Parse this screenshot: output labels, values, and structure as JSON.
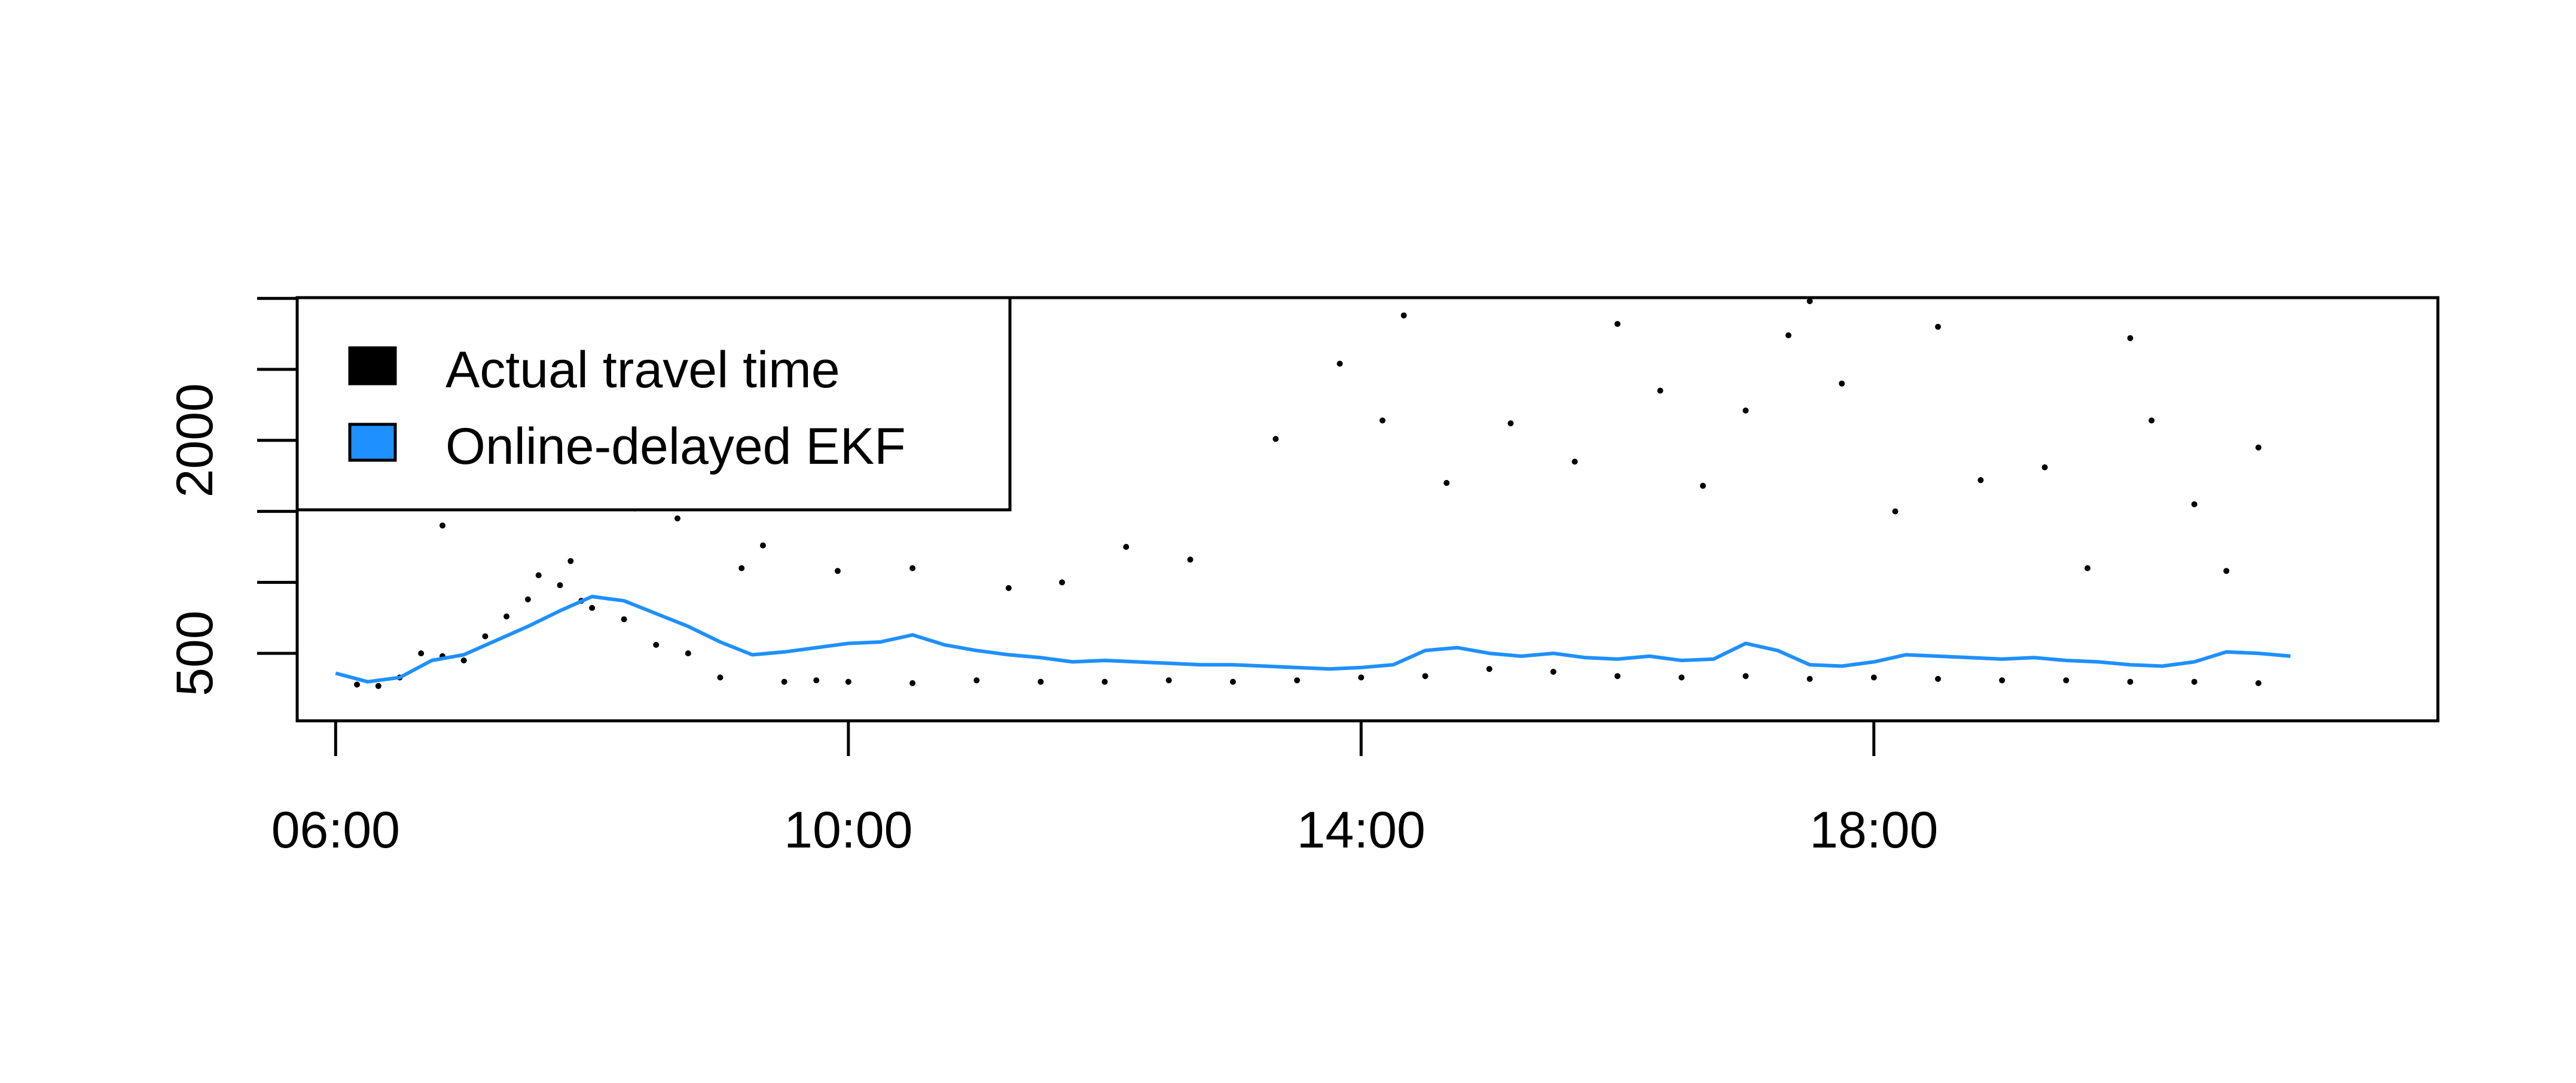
{
  "chart_data": {
    "type": "scatter",
    "title": "",
    "xlabel": "",
    "ylabel": "",
    "xlim": [
      "05:42",
      "22:24"
    ],
    "ylim": [
      25,
      3005
    ],
    "x_ticks": [
      "06:00",
      "10:00",
      "14:00",
      "18:00"
    ],
    "y_ticks": [
      500,
      1000,
      1500,
      2000,
      2500,
      3000
    ],
    "y_tick_labels": [
      "500",
      "",
      "",
      "2000",
      "",
      ""
    ],
    "legend": {
      "position": "top-left",
      "entries": [
        {
          "label": "Actual travel time",
          "color": "#000000"
        },
        {
          "label": "Online-delayed EKF",
          "color": "#1E90FF"
        }
      ]
    },
    "series": [
      {
        "name": "Actual travel time",
        "kind": "points",
        "color": "#000000",
        "points": [
          [
            "06:10",
            280
          ],
          [
            "06:20",
            270
          ],
          [
            "06:30",
            330
          ],
          [
            "06:40",
            500
          ],
          [
            "06:50",
            480
          ],
          [
            "07:00",
            450
          ],
          [
            "07:10",
            620
          ],
          [
            "07:20",
            760
          ],
          [
            "07:30",
            880
          ],
          [
            "07:35",
            1050
          ],
          [
            "07:45",
            980
          ],
          [
            "07:50",
            1150
          ],
          [
            "07:55",
            870
          ],
          [
            "08:00",
            820
          ],
          [
            "08:15",
            740
          ],
          [
            "08:30",
            560
          ],
          [
            "08:45",
            500
          ],
          [
            "09:00",
            330
          ],
          [
            "09:30",
            300
          ],
          [
            "09:45",
            310
          ],
          [
            "10:00",
            300
          ],
          [
            "10:30",
            290
          ],
          [
            "11:00",
            310
          ],
          [
            "11:30",
            300
          ],
          [
            "12:00",
            300
          ],
          [
            "12:30",
            310
          ],
          [
            "13:00",
            300
          ],
          [
            "13:30",
            310
          ],
          [
            "14:00",
            330
          ],
          [
            "14:30",
            340
          ],
          [
            "15:00",
            390
          ],
          [
            "15:30",
            370
          ],
          [
            "16:00",
            340
          ],
          [
            "16:30",
            330
          ],
          [
            "17:00",
            340
          ],
          [
            "17:30",
            320
          ],
          [
            "18:00",
            330
          ],
          [
            "18:30",
            320
          ],
          [
            "19:00",
            310
          ],
          [
            "19:30",
            310
          ],
          [
            "20:00",
            300
          ],
          [
            "20:30",
            300
          ],
          [
            "21:00",
            290
          ],
          [
            "06:50",
            1400
          ],
          [
            "07:15",
            1830
          ],
          [
            "07:40",
            1700
          ],
          [
            "08:20",
            1520
          ],
          [
            "08:40",
            1450
          ],
          [
            "09:10",
            1100
          ],
          [
            "09:20",
            1260
          ],
          [
            "09:35",
            1800
          ],
          [
            "09:55",
            1080
          ],
          [
            "10:30",
            1100
          ],
          [
            "11:15",
            960
          ],
          [
            "11:40",
            1000
          ],
          [
            "12:10",
            1250
          ],
          [
            "12:40",
            1160
          ],
          [
            "13:20",
            2010
          ],
          [
            "13:50",
            2540
          ],
          [
            "14:10",
            2140
          ],
          [
            "14:20",
            2880
          ],
          [
            "14:40",
            1700
          ],
          [
            "15:10",
            2120
          ],
          [
            "15:40",
            1850
          ],
          [
            "16:00",
            2820
          ],
          [
            "16:20",
            2350
          ],
          [
            "16:40",
            1680
          ],
          [
            "17:00",
            2210
          ],
          [
            "17:20",
            2740
          ],
          [
            "17:30",
            2980
          ],
          [
            "17:45",
            2400
          ],
          [
            "18:10",
            1500
          ],
          [
            "18:30",
            2800
          ],
          [
            "18:50",
            1720
          ],
          [
            "19:20",
            1810
          ],
          [
            "19:40",
            1100
          ],
          [
            "20:00",
            2720
          ],
          [
            "20:10",
            2140
          ],
          [
            "20:30",
            1550
          ],
          [
            "20:45",
            1080
          ],
          [
            "21:00",
            1950
          ]
        ]
      },
      {
        "name": "Online-delayed EKF",
        "kind": "line",
        "color": "#1E90FF",
        "points": [
          [
            "06:00",
            360
          ],
          [
            "06:15",
            300
          ],
          [
            "06:30",
            330
          ],
          [
            "06:45",
            450
          ],
          [
            "07:00",
            490
          ],
          [
            "07:15",
            590
          ],
          [
            "07:30",
            690
          ],
          [
            "07:45",
            800
          ],
          [
            "08:00",
            900
          ],
          [
            "08:15",
            870
          ],
          [
            "08:30",
            780
          ],
          [
            "08:45",
            690
          ],
          [
            "09:00",
            580
          ],
          [
            "09:15",
            490
          ],
          [
            "09:30",
            510
          ],
          [
            "09:45",
            540
          ],
          [
            "10:00",
            570
          ],
          [
            "10:15",
            580
          ],
          [
            "10:30",
            630
          ],
          [
            "10:45",
            560
          ],
          [
            "11:00",
            520
          ],
          [
            "11:15",
            490
          ],
          [
            "11:30",
            470
          ],
          [
            "11:45",
            440
          ],
          [
            "12:00",
            450
          ],
          [
            "12:15",
            440
          ],
          [
            "12:30",
            430
          ],
          [
            "12:45",
            420
          ],
          [
            "13:00",
            420
          ],
          [
            "13:15",
            410
          ],
          [
            "13:30",
            400
          ],
          [
            "13:45",
            390
          ],
          [
            "14:00",
            400
          ],
          [
            "14:15",
            420
          ],
          [
            "14:30",
            520
          ],
          [
            "14:45",
            540
          ],
          [
            "15:00",
            500
          ],
          [
            "15:15",
            480
          ],
          [
            "15:30",
            500
          ],
          [
            "15:45",
            470
          ],
          [
            "16:00",
            460
          ],
          [
            "16:15",
            480
          ],
          [
            "16:30",
            450
          ],
          [
            "16:45",
            460
          ],
          [
            "17:00",
            570
          ],
          [
            "17:15",
            520
          ],
          [
            "17:30",
            420
          ],
          [
            "17:45",
            410
          ],
          [
            "18:00",
            440
          ],
          [
            "18:15",
            490
          ],
          [
            "18:30",
            480
          ],
          [
            "18:45",
            470
          ],
          [
            "19:00",
            460
          ],
          [
            "19:15",
            470
          ],
          [
            "19:30",
            450
          ],
          [
            "19:45",
            440
          ],
          [
            "20:00",
            420
          ],
          [
            "20:15",
            410
          ],
          [
            "20:30",
            440
          ],
          [
            "20:45",
            510
          ],
          [
            "21:00",
            500
          ],
          [
            "21:15",
            480
          ]
        ]
      }
    ]
  }
}
